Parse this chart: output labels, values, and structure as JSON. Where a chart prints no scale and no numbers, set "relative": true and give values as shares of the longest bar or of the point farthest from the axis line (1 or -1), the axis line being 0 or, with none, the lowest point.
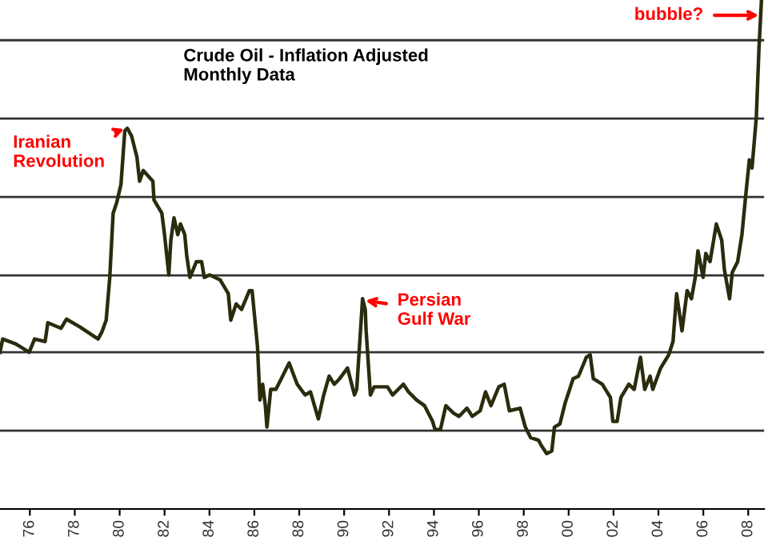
{
  "chart_data": {
    "type": "line",
    "title": "Crude Oil - Inflation Adjusted\nMonthly Data",
    "relative": true,
    "x": [
      1974.67,
      1974.79,
      1975.38,
      1975.97,
      1976.21,
      1976.68,
      1976.8,
      1977.39,
      1977.63,
      1978.22,
      1979.04,
      1979.21,
      1979.4,
      1979.56,
      1979.71,
      1979.87,
      1980.06,
      1980.23,
      1980.34,
      1980.53,
      1980.77,
      1980.89,
      1981.05,
      1981.48,
      1981.53,
      1981.88,
      1982.0,
      1982.19,
      1982.28,
      1982.42,
      1982.59,
      1982.71,
      1982.9,
      1982.99,
      1983.13,
      1983.42,
      1983.65,
      1983.77,
      1984.01,
      1984.24,
      1984.48,
      1984.84,
      1984.95,
      1985.19,
      1985.43,
      1985.78,
      1985.9,
      1986.14,
      1986.25,
      1986.37,
      1986.49,
      1986.56,
      1986.73,
      1986.96,
      1987.2,
      1987.55,
      1987.91,
      1988.26,
      1988.5,
      1988.85,
      1989.09,
      1989.33,
      1989.56,
      1989.8,
      1990.15,
      1990.46,
      1990.56,
      1990.82,
      1990.94,
      1990.98,
      1991.17,
      1991.34,
      1991.69,
      1991.93,
      1992.16,
      1992.64,
      1992.87,
      1993.23,
      1993.58,
      1993.94,
      1994.05,
      1994.29,
      1994.53,
      1994.88,
      1995.12,
      1995.47,
      1995.71,
      1996.06,
      1996.3,
      1996.54,
      1996.89,
      1997.13,
      1997.36,
      1997.84,
      1998.07,
      1998.31,
      1998.66,
      1998.78,
      1999.02,
      1999.25,
      1999.37,
      1999.61,
      1999.85,
      2000.2,
      2000.44,
      2000.79,
      2000.96,
      2001.1,
      2001.5,
      2001.86,
      2001.97,
      2002.16,
      2002.33,
      2002.68,
      2002.92,
      2003.2,
      2003.39,
      2003.63,
      2003.75,
      2004.1,
      2004.46,
      2004.65,
      2004.81,
      2005.05,
      2005.28,
      2005.47,
      2005.64,
      2005.76,
      2005.99,
      2006.11,
      2006.3,
      2006.58,
      2006.82,
      2006.94,
      2007.17,
      2007.29,
      2007.53,
      2007.72,
      2007.88,
      2008.05,
      2008.17,
      2008.36,
      2008.48,
      2008.59
    ],
    "series": [
      {
        "color": "#2b2b0e",
        "values": [
          0.308,
          0.334,
          0.324,
          0.308,
          0.334,
          0.329,
          0.366,
          0.355,
          0.373,
          0.358,
          0.334,
          0.348,
          0.371,
          0.455,
          0.581,
          0.602,
          0.638,
          0.743,
          0.748,
          0.733,
          0.691,
          0.644,
          0.665,
          0.644,
          0.607,
          0.581,
          0.539,
          0.46,
          0.528,
          0.572,
          0.539,
          0.56,
          0.539,
          0.497,
          0.455,
          0.486,
          0.486,
          0.455,
          0.46,
          0.455,
          0.45,
          0.423,
          0.371,
          0.403,
          0.392,
          0.429,
          0.429,
          0.319,
          0.214,
          0.245,
          0.203,
          0.161,
          0.235,
          0.235,
          0.256,
          0.287,
          0.245,
          0.224,
          0.23,
          0.177,
          0.224,
          0.261,
          0.245,
          0.256,
          0.277,
          0.224,
          0.235,
          0.413,
          0.392,
          0.35,
          0.224,
          0.24,
          0.24,
          0.24,
          0.224,
          0.245,
          0.23,
          0.214,
          0.203,
          0.172,
          0.156,
          0.156,
          0.203,
          0.188,
          0.182,
          0.198,
          0.182,
          0.193,
          0.23,
          0.203,
          0.24,
          0.245,
          0.193,
          0.198,
          0.161,
          0.14,
          0.135,
          0.125,
          0.109,
          0.114,
          0.161,
          0.167,
          0.209,
          0.256,
          0.261,
          0.298,
          0.303,
          0.256,
          0.245,
          0.219,
          0.172,
          0.172,
          0.219,
          0.245,
          0.235,
          0.298,
          0.235,
          0.261,
          0.235,
          0.277,
          0.303,
          0.329,
          0.423,
          0.35,
          0.429,
          0.413,
          0.455,
          0.507,
          0.455,
          0.502,
          0.486,
          0.56,
          0.528,
          0.47,
          0.413,
          0.465,
          0.486,
          0.539,
          0.612,
          0.686,
          0.67,
          0.769,
          0.906,
          1
        ]
      }
    ],
    "xlim": [
      1974.67,
      2008.71
    ],
    "xticks": [
      {
        "value": 1976,
        "label": "76"
      },
      {
        "value": 1978,
        "label": "78"
      },
      {
        "value": 1980,
        "label": "80"
      },
      {
        "value": 1982,
        "label": "82"
      },
      {
        "value": 1984,
        "label": "84"
      },
      {
        "value": 1986,
        "label": "86"
      },
      {
        "value": 1988,
        "label": "88"
      },
      {
        "value": 1990,
        "label": "90"
      },
      {
        "value": 1992,
        "label": "92"
      },
      {
        "value": 1994,
        "label": "94"
      },
      {
        "value": 1996,
        "label": "96"
      },
      {
        "value": 1998,
        "label": "98"
      },
      {
        "value": 2000,
        "label": "00"
      },
      {
        "value": 2002,
        "label": "02"
      },
      {
        "value": 2004,
        "label": "04"
      },
      {
        "value": 2006,
        "label": "06"
      },
      {
        "value": 2008,
        "label": "08"
      }
    ],
    "ref_lines": [
      {
        "axis": "y",
        "value": 0.154,
        "color": "#333333"
      },
      {
        "axis": "y",
        "value": 0.308,
        "color": "#333333"
      },
      {
        "axis": "y",
        "value": 0.459,
        "color": "#333333"
      },
      {
        "axis": "y",
        "value": 0.613,
        "color": "#333333"
      },
      {
        "axis": "y",
        "value": 0.767,
        "color": "#333333"
      },
      {
        "axis": "y",
        "value": 0.921,
        "color": "#333333"
      }
    ],
    "annotations": [
      {
        "text": "Iranian\nRevolution",
        "x": 1980.3,
        "y": 0.748
      },
      {
        "text": "Persian\nGulf War",
        "x": 1990.85,
        "y": 0.41
      },
      {
        "text": "bubble?",
        "x": 2008.57,
        "y": 0.97
      }
    ],
    "legend": false
  }
}
